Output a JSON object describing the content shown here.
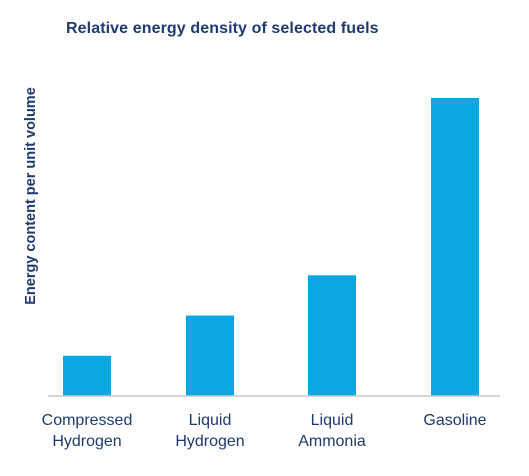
{
  "chart_data": {
    "type": "bar",
    "title": "Relative energy density of selected fuels",
    "ylabel": "Energy content per unit volume",
    "xlabel": "",
    "categories": [
      "Compressed\nHydrogen",
      "Liquid\nHydrogen",
      "Liquid\nAmmonia",
      "Gasoline"
    ],
    "values": [
      13.5,
      27,
      40.5,
      100
    ],
    "ylim": [
      0,
      100
    ],
    "grid": false,
    "legend": "none",
    "colors": {
      "bar": "#09a7e4",
      "axis": "#c8c8c8",
      "text": "#1f3a6e"
    }
  }
}
